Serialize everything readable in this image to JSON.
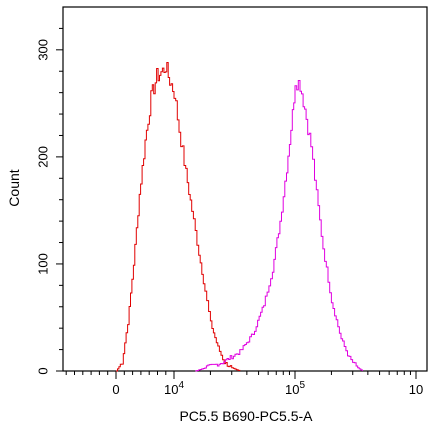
{
  "chart_data": {
    "type": "line",
    "title": "",
    "xlabel": "PC5.5 B690-PC5.5-A",
    "ylabel": "Count",
    "xscale": "logicle",
    "ylim": [
      0,
      340
    ],
    "grid": false,
    "legend": "none",
    "y_ticks": [
      {
        "value": 0,
        "label": "0"
      },
      {
        "value": 100,
        "label": "100"
      },
      {
        "value": 200,
        "label": "200"
      },
      {
        "value": 300,
        "label": "300"
      }
    ],
    "x_ticks": [
      {
        "value": 0,
        "label": "0",
        "sup": ""
      },
      {
        "value": 10000,
        "label": "10",
        "sup": "4"
      },
      {
        "value": 100000,
        "label": "10",
        "sup": "5"
      },
      {
        "value": 1000000,
        "label": "10",
        "sup": ""
      }
    ],
    "series": [
      {
        "color": "#e00000",
        "x": [
          0,
          1000,
          2000,
          3000,
          4000,
          5000,
          6000,
          7000,
          8000,
          8500,
          9000,
          10000,
          11000,
          12500,
          14000,
          16000,
          18000,
          20000,
          23000,
          26000,
          30000,
          35000
        ],
        "y": [
          0,
          8,
          45,
          100,
          165,
          215,
          255,
          275,
          280,
          285,
          275,
          260,
          225,
          185,
          150,
          110,
          75,
          45,
          22,
          8,
          3,
          0
        ]
      },
      {
        "color": "#e000e0",
        "x": [
          15000,
          25000,
          35000,
          45000,
          55000,
          65000,
          75000,
          85000,
          95000,
          100000,
          110000,
          120000,
          135000,
          150000,
          170000,
          200000,
          240000,
          280000,
          320000,
          360000
        ],
        "y": [
          0,
          8,
          18,
          35,
          62,
          95,
          140,
          190,
          240,
          272,
          268,
          245,
          210,
          165,
          115,
          65,
          30,
          12,
          4,
          0
        ]
      }
    ]
  }
}
